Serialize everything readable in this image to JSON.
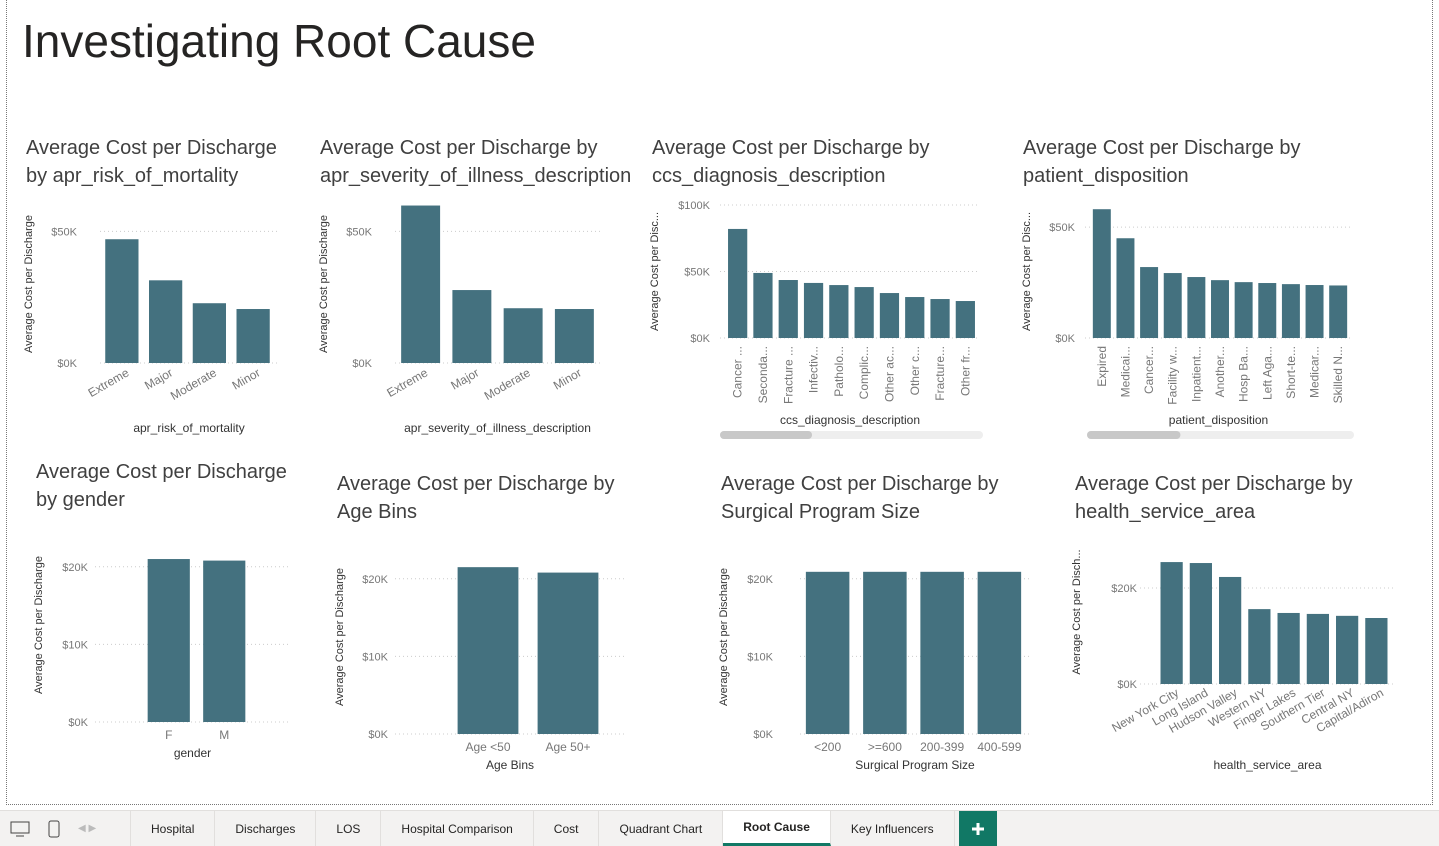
{
  "header": {
    "title": "Investigating Root Cause"
  },
  "chart_data": [
    {
      "type": "bar",
      "title": "Average Cost per Discharge by apr_risk_of_mortality",
      "x_label": "apr_risk_of_mortality",
      "y_label": "Average Cost per Discharge",
      "categories": [
        "Extreme",
        "Major",
        "Moderate",
        "Minor"
      ],
      "values": [
        47000,
        31400,
        22700,
        20500
      ],
      "color": "#44717f",
      "ylim": [
        0,
        60000
      ],
      "yticks": [
        {
          "value": 0,
          "label": "$0K"
        },
        {
          "value": 50000,
          "label": "$50K"
        }
      ]
    },
    {
      "type": "bar",
      "title": "Average Cost per Discharge by apr_severity_of_illness_description",
      "x_label": "apr_severity_of_illness_description",
      "y_label": "Average Cost per Discharge",
      "categories": [
        "Extreme",
        "Major",
        "Moderate",
        "Minor"
      ],
      "values": [
        59800,
        27700,
        20800,
        20500
      ],
      "color": "#44717f",
      "ylim": [
        0,
        60000
      ],
      "yticks": [
        {
          "value": 0,
          "label": "$0K"
        },
        {
          "value": 50000,
          "label": "$50K"
        }
      ]
    },
    {
      "type": "bar",
      "title": "Average Cost per Discharge by ccs_diagnosis_description",
      "x_label": "ccs_diagnosis_description",
      "y_label": "Average Cost per Disc...",
      "categories": [
        "Cancer ...",
        "Seconda...",
        "Fracture ...",
        "Infectiv...",
        "Patholo...",
        "Complic...",
        "Other ac...",
        "Other c...",
        "Fracture...",
        "Other fr..."
      ],
      "values": [
        82000,
        48900,
        43600,
        41400,
        39800,
        38300,
        33800,
        30800,
        29300,
        27800
      ],
      "color": "#44717f",
      "ylim": [
        0,
        100000
      ],
      "yticks": [
        {
          "value": 0,
          "label": "$0K"
        },
        {
          "value": 50000,
          "label": "$50K"
        },
        {
          "value": 100000,
          "label": "$100K"
        }
      ]
    },
    {
      "type": "bar",
      "title": "Average Cost per Discharge by patient_disposition",
      "x_label": "patient_disposition",
      "y_label": "Average Cost per Disc...",
      "categories": [
        "Expired",
        "Medicai...",
        "Cancer...",
        "Facility w...",
        "Inpatient...",
        "Another...",
        "Hosp Ba...",
        "Left Aga...",
        "Short-te...",
        "Medicar...",
        "Skilled N..."
      ],
      "values": [
        58100,
        45000,
        32000,
        29300,
        27500,
        26100,
        25200,
        24800,
        24300,
        23900,
        23700
      ],
      "color": "#44717f",
      "ylim": [
        0,
        60000
      ],
      "yticks": [
        {
          "value": 0,
          "label": "$0K"
        },
        {
          "value": 50000,
          "label": "$50K"
        }
      ]
    },
    {
      "type": "bar",
      "title": "Average Cost per Discharge by gender",
      "x_label": "gender",
      "y_label": "Average Cost per Discharge",
      "categories": [
        "F",
        "M"
      ],
      "values": [
        21000,
        20800
      ],
      "color": "#44717f",
      "ylim": [
        0,
        25000
      ],
      "yticks": [
        {
          "value": 0,
          "label": "$0K"
        },
        {
          "value": 10000,
          "label": "$10K"
        },
        {
          "value": 20000,
          "label": "$20K"
        }
      ]
    },
    {
      "type": "bar",
      "title": "Average Cost per Discharge by Age Bins",
      "x_label": "Age Bins",
      "y_label": "Average Cost per Discharge",
      "categories": [
        "Age <50",
        "Age 50+"
      ],
      "values": [
        21500,
        20800
      ],
      "color": "#44717f",
      "ylim": [
        0,
        25000
      ],
      "yticks": [
        {
          "value": 0,
          "label": "$0K"
        },
        {
          "value": 10000,
          "label": "$10K"
        },
        {
          "value": 20000,
          "label": "$20K"
        }
      ]
    },
    {
      "type": "bar",
      "title": "Average Cost per Discharge by Surgical Program Size",
      "x_label": "Surgical Program Size",
      "y_label": "Average Cost per Discharge",
      "categories": [
        "<200",
        ">=600",
        "200-399",
        "400-599"
      ],
      "values": [
        20900,
        20900,
        20900,
        20900
      ],
      "color": "#44717f",
      "ylim": [
        0,
        25000
      ],
      "yticks": [
        {
          "value": 0,
          "label": "$0K"
        },
        {
          "value": 10000,
          "label": "$10K"
        },
        {
          "value": 20000,
          "label": "$20K"
        }
      ]
    },
    {
      "type": "bar",
      "title": "Average Cost per Discharge by health_service_area",
      "x_label": "health_service_area",
      "y_label": "Average Cost per Disch...",
      "categories": [
        "New York City",
        "Long Island",
        "Hudson Valley",
        "Western NY",
        "Finger Lakes",
        "Southern Tier",
        "Central NY",
        "Capital/Adiron"
      ],
      "values": [
        25400,
        25200,
        22300,
        15600,
        14800,
        14600,
        14200,
        13750
      ],
      "color": "#44717f",
      "ylim": [
        0,
        30000
      ],
      "yticks": [
        {
          "value": 0,
          "label": "$0K"
        },
        {
          "value": 20000,
          "label": "$20K"
        }
      ]
    }
  ],
  "tabs": [
    "Hospital",
    "Discharges",
    "LOS",
    "Hospital Comparison",
    "Cost",
    "Quadrant Chart",
    "Root Cause",
    "Key Influencers"
  ],
  "active_tab": 6
}
